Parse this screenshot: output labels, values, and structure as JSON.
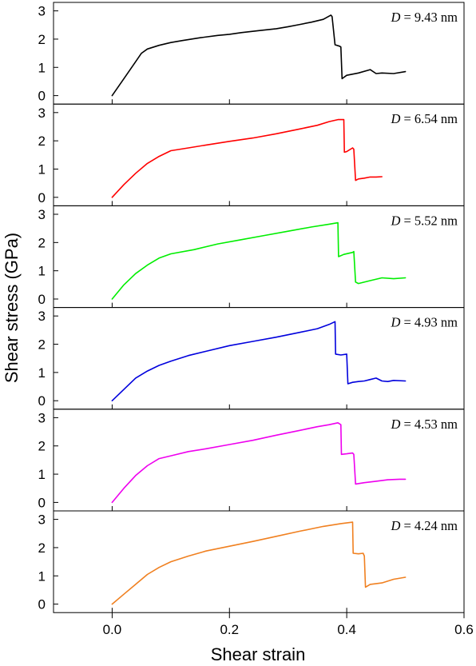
{
  "chart_data": {
    "type": "line",
    "layout": "stacked-panels",
    "xlabel": "Shear strain",
    "ylabel": "Shear stress (GPa)",
    "xlim": [
      -0.1,
      0.6
    ],
    "xticks": [
      0.0,
      0.2,
      0.4,
      0.6
    ],
    "xtick_labels": [
      "0.0",
      "0.2",
      "0.4",
      "0.6"
    ],
    "ylim": [
      -0.3,
      3.3
    ],
    "yticks": [
      0,
      1,
      2,
      3
    ],
    "ytick_labels": [
      "0",
      "1",
      "2",
      "3"
    ],
    "grid": false,
    "legend": "none",
    "panels": [
      {
        "annotation_var": "D",
        "annotation_value": "= 9.43 nm",
        "color": "#000000",
        "x": [
          0.0,
          0.02,
          0.04,
          0.05,
          0.06,
          0.08,
          0.1,
          0.12,
          0.15,
          0.18,
          0.2,
          0.22,
          0.25,
          0.28,
          0.3,
          0.32,
          0.34,
          0.36,
          0.373,
          0.375,
          0.38,
          0.388,
          0.39,
          0.392,
          0.4,
          0.42,
          0.44,
          0.45,
          0.46,
          0.48,
          0.5
        ],
        "y": [
          0.0,
          0.6,
          1.2,
          1.5,
          1.65,
          1.78,
          1.88,
          1.95,
          2.05,
          2.13,
          2.17,
          2.23,
          2.3,
          2.37,
          2.44,
          2.52,
          2.6,
          2.7,
          2.85,
          2.8,
          1.8,
          1.75,
          1.72,
          0.6,
          0.72,
          0.8,
          0.92,
          0.78,
          0.8,
          0.78,
          0.85
        ]
      },
      {
        "annotation_var": "D",
        "annotation_value": "= 6.54 nm",
        "color": "#ff0000",
        "x": [
          0.0,
          0.02,
          0.04,
          0.06,
          0.08,
          0.1,
          0.13,
          0.16,
          0.2,
          0.24,
          0.28,
          0.32,
          0.35,
          0.37,
          0.385,
          0.395,
          0.396,
          0.4,
          0.41,
          0.412,
          0.415,
          0.42,
          0.43,
          0.44,
          0.45,
          0.46
        ],
        "y": [
          0.0,
          0.45,
          0.85,
          1.2,
          1.45,
          1.65,
          1.75,
          1.85,
          1.98,
          2.1,
          2.25,
          2.42,
          2.55,
          2.68,
          2.75,
          2.75,
          1.6,
          1.62,
          1.75,
          1.7,
          0.6,
          0.65,
          0.68,
          0.72,
          0.72,
          0.73
        ]
      },
      {
        "annotation_var": "D",
        "annotation_value": "= 5.52 nm",
        "color": "#00ee00",
        "x": [
          0.0,
          0.02,
          0.04,
          0.06,
          0.08,
          0.1,
          0.14,
          0.18,
          0.22,
          0.26,
          0.3,
          0.34,
          0.37,
          0.385,
          0.386,
          0.395,
          0.41,
          0.412,
          0.415,
          0.42,
          0.44,
          0.46,
          0.48,
          0.5
        ],
        "y": [
          0.0,
          0.5,
          0.9,
          1.2,
          1.45,
          1.6,
          1.75,
          1.95,
          2.1,
          2.25,
          2.4,
          2.55,
          2.65,
          2.7,
          1.5,
          1.58,
          1.65,
          1.68,
          0.6,
          0.55,
          0.65,
          0.75,
          0.72,
          0.75
        ]
      },
      {
        "annotation_var": "D",
        "annotation_value": "= 4.93 nm",
        "color": "#0000dd",
        "x": [
          0.0,
          0.02,
          0.04,
          0.06,
          0.08,
          0.1,
          0.13,
          0.16,
          0.2,
          0.24,
          0.28,
          0.32,
          0.35,
          0.37,
          0.38,
          0.381,
          0.39,
          0.4,
          0.402,
          0.41,
          0.42,
          0.43,
          0.44,
          0.45,
          0.46,
          0.47,
          0.48,
          0.5
        ],
        "y": [
          0.0,
          0.4,
          0.8,
          1.05,
          1.25,
          1.4,
          1.6,
          1.75,
          1.95,
          2.1,
          2.25,
          2.42,
          2.55,
          2.7,
          2.8,
          1.65,
          1.62,
          1.65,
          0.6,
          0.65,
          0.68,
          0.7,
          0.75,
          0.8,
          0.7,
          0.68,
          0.72,
          0.7
        ]
      },
      {
        "annotation_var": "D",
        "annotation_value": "= 4.53 nm",
        "color": "#ee00ee",
        "x": [
          0.0,
          0.02,
          0.04,
          0.06,
          0.08,
          0.1,
          0.13,
          0.16,
          0.2,
          0.24,
          0.28,
          0.32,
          0.35,
          0.37,
          0.385,
          0.39,
          0.391,
          0.4,
          0.41,
          0.412,
          0.415,
          0.43,
          0.45,
          0.47,
          0.49,
          0.5
        ],
        "y": [
          0.0,
          0.5,
          0.95,
          1.3,
          1.55,
          1.65,
          1.8,
          1.9,
          2.05,
          2.2,
          2.38,
          2.55,
          2.68,
          2.75,
          2.82,
          2.75,
          1.7,
          1.72,
          1.75,
          1.7,
          0.65,
          0.7,
          0.75,
          0.8,
          0.82,
          0.82
        ]
      },
      {
        "annotation_var": "D",
        "annotation_value": "= 4.24 nm",
        "color": "#f08020",
        "x": [
          0.0,
          0.02,
          0.04,
          0.06,
          0.08,
          0.1,
          0.13,
          0.16,
          0.2,
          0.24,
          0.28,
          0.32,
          0.36,
          0.39,
          0.41,
          0.411,
          0.42,
          0.428,
          0.43,
          0.432,
          0.44,
          0.46,
          0.48,
          0.5
        ],
        "y": [
          0.0,
          0.35,
          0.7,
          1.05,
          1.3,
          1.5,
          1.7,
          1.88,
          2.05,
          2.22,
          2.4,
          2.58,
          2.75,
          2.85,
          2.9,
          1.8,
          1.78,
          1.8,
          1.7,
          0.6,
          0.7,
          0.75,
          0.88,
          0.95
        ]
      }
    ]
  }
}
